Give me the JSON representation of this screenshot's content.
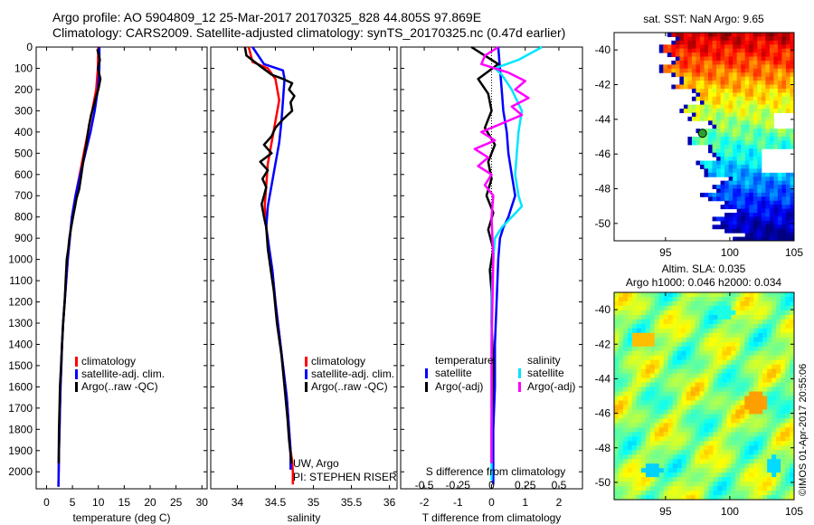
{
  "title_line1": "Argo profile: AO 5904809_12 25-Mar-2017 20170325_828 44.805S 97.869E",
  "title_line2": "Climatology: CARS2009. Satellite-adjusted climatology: synTS_20170325.nc (0.47d earlier)",
  "colors": {
    "climatology": "#ff0000",
    "satellite": "#0000ff",
    "argo": "#000000",
    "magenta": "#ff00ff",
    "cyan": "#00e5ff"
  },
  "chart_data": [
    {
      "type": "line",
      "id": "temperature",
      "xlabel": "temperature (deg C)",
      "ylabel": "",
      "xlim": [
        -2,
        31
      ],
      "ylim": [
        2080,
        0
      ],
      "xticks": [
        "0",
        "5",
        "10",
        "15",
        "20",
        "25",
        "30"
      ],
      "xtick_values": [
        0,
        5,
        10,
        15,
        20,
        25,
        30
      ],
      "yticks": [
        "0",
        "100",
        "200",
        "300",
        "400",
        "500",
        "600",
        "700",
        "800",
        "900",
        "1000",
        "1100",
        "1200",
        "1300",
        "1400",
        "1500",
        "1600",
        "1700",
        "1800",
        "1900",
        "2000"
      ],
      "ytick_values": [
        0,
        100,
        200,
        300,
        400,
        500,
        600,
        700,
        800,
        900,
        1000,
        1100,
        1200,
        1300,
        1400,
        1500,
        1600,
        1700,
        1800,
        1900,
        2000
      ],
      "legend": {
        "climatology": "climatology",
        "satellite": "satellite-adj. clim.",
        "argo": "Argo(..raw -QC)"
      },
      "series": [
        {
          "name": "climatology",
          "color_key": "climatology",
          "x": [
            10.0,
            9.9,
            9.6,
            8.8,
            8.0,
            7.2,
            6.4,
            5.6,
            4.9,
            4.5,
            4.1,
            3.8,
            3.5,
            3.2,
            3.0,
            2.85,
            2.7,
            2.6,
            2.5,
            2.4,
            2.35,
            2.3
          ],
          "y": [
            0,
            100,
            200,
            300,
            400,
            500,
            600,
            700,
            800,
            900,
            1000,
            1100,
            1200,
            1300,
            1400,
            1500,
            1600,
            1700,
            1800,
            1900,
            2000,
            2070
          ]
        },
        {
          "name": "satellite-adj. clim.",
          "color_key": "satellite",
          "x": [
            10.2,
            10.2,
            9.9,
            9.3,
            8.5,
            7.5,
            6.5,
            5.6,
            4.9,
            4.5,
            4.1,
            3.8,
            3.5,
            3.2,
            3.0,
            2.85,
            2.7,
            2.6,
            2.5,
            2.4,
            2.35,
            2.3
          ],
          "y": [
            0,
            100,
            200,
            300,
            400,
            500,
            600,
            700,
            800,
            900,
            1000,
            1100,
            1200,
            1300,
            1400,
            1500,
            1600,
            1700,
            1800,
            1900,
            2000,
            2070
          ]
        },
        {
          "name": "Argo(..raw -QC)",
          "color_key": "argo",
          "x": [
            9.8,
            10.3,
            9.9,
            10.4,
            10.0,
            9.6,
            9.2,
            8.6,
            8.2,
            7.9,
            7.6,
            7.2,
            6.9,
            6.6,
            6.3,
            5.8,
            5.5,
            5.2,
            4.9,
            4.6,
            4.4,
            4.2,
            3.9,
            3.7,
            3.5,
            3.2,
            3.0,
            2.8,
            2.6,
            2.5,
            2.4,
            2.35
          ],
          "y": [
            10,
            60,
            100,
            150,
            200,
            230,
            270,
            320,
            370,
            420,
            470,
            520,
            570,
            620,
            670,
            710,
            750,
            790,
            830,
            870,
            900,
            950,
            1000,
            1100,
            1200,
            1300,
            1400,
            1500,
            1600,
            1700,
            1800,
            1960
          ]
        }
      ]
    },
    {
      "type": "line",
      "id": "salinity",
      "xlabel": "salinity",
      "xlim": [
        33.65,
        36.1
      ],
      "ylim": [
        2080,
        0
      ],
      "xticks": [
        "34",
        "34.5",
        "35",
        "35.5",
        "36"
      ],
      "xtick_values": [
        34,
        34.5,
        35,
        35.5,
        36
      ],
      "legend": {
        "climatology": "climatology",
        "satellite": "satellite-adj. clim.",
        "argo": "Argo(..raw -QC)"
      },
      "annotation_line1": "UW, Argo",
      "annotation_line2": "PI: STEPHEN RISER",
      "series": [
        {
          "name": "climatology",
          "color_key": "climatology",
          "x": [
            34.15,
            34.2,
            34.4,
            34.5,
            34.55,
            34.5,
            34.45,
            34.4,
            34.38,
            34.36,
            34.38,
            34.42,
            34.46,
            34.5,
            34.55,
            34.6,
            34.65,
            34.68,
            34.7,
            34.72,
            34.73,
            34.73
          ],
          "y": [
            0,
            70,
            100,
            150,
            250,
            350,
            450,
            550,
            650,
            750,
            850,
            950,
            1050,
            1200,
            1350,
            1500,
            1650,
            1800,
            1900,
            1950,
            2000,
            2060
          ]
        },
        {
          "name": "satellite-adj. clim.",
          "color_key": "satellite",
          "x": [
            34.2,
            34.35,
            34.6,
            34.62,
            34.6,
            34.58,
            34.55,
            34.5,
            34.45,
            34.4,
            34.38,
            34.42,
            34.46,
            34.5,
            34.55,
            34.6,
            34.65,
            34.68,
            34.7,
            34.7,
            34.7
          ],
          "y": [
            0,
            80,
            110,
            150,
            250,
            350,
            450,
            550,
            650,
            750,
            850,
            950,
            1050,
            1200,
            1350,
            1500,
            1650,
            1800,
            1900,
            1950,
            1990
          ]
        },
        {
          "name": "Argo(..raw -QC)",
          "color_key": "argo",
          "x": [
            34.1,
            34.12,
            34.3,
            34.45,
            34.6,
            34.72,
            34.68,
            34.75,
            34.7,
            34.72,
            34.6,
            34.5,
            34.45,
            34.35,
            34.45,
            34.3,
            34.4,
            34.33,
            34.38,
            34.35,
            34.32,
            34.35,
            34.38,
            34.4,
            34.44,
            34.48,
            34.52,
            34.58,
            34.62,
            34.66,
            34.68,
            34.7,
            34.71
          ],
          "y": [
            0,
            40,
            90,
            130,
            150,
            170,
            200,
            230,
            260,
            300,
            340,
            380,
            420,
            460,
            500,
            540,
            580,
            620,
            660,
            700,
            740,
            800,
            850,
            950,
            1050,
            1150,
            1300,
            1450,
            1600,
            1750,
            1850,
            1920,
            1960
          ]
        }
      ]
    },
    {
      "type": "line",
      "id": "difference",
      "xlabel": "T difference from climatology",
      "xlabel_top": "S difference from climatology",
      "xlim": [
        -2.7,
        2.7
      ],
      "ylim": [
        2080,
        0
      ],
      "xticks": [
        "-2",
        "-1",
        "0",
        "1",
        "2"
      ],
      "xtick_values": [
        -2,
        -1,
        0,
        1,
        2
      ],
      "sticks": [
        "-0.5",
        "-0.25",
        "0",
        "0.25",
        "0.5"
      ],
      "stick_values": [
        -2,
        -1,
        0,
        1,
        2
      ],
      "legend": {
        "temperature": "temperature",
        "salinity": "salinity",
        "t_sat": "satellite",
        "t_argo": "Argo(-adj)",
        "s_sat": "satellite",
        "s_argo": "Argo(-adj)"
      },
      "series": [
        {
          "name": "temperature satellite",
          "color_key": "satellite",
          "x": [
            0.2,
            0.25,
            0.3,
            0.35,
            0.45,
            0.5,
            0.6,
            0.7,
            0.6,
            0.5,
            0.35,
            0.25,
            0.2,
            0.15,
            0.1,
            0.1,
            0.05,
            0.05,
            0.05,
            0.05
          ],
          "y": [
            0,
            100,
            200,
            300,
            400,
            500,
            600,
            700,
            750,
            800,
            850,
            900,
            1000,
            1200,
            1400,
            1600,
            1800,
            1900,
            2000,
            2060
          ]
        },
        {
          "name": "temperature Argo(-adj)",
          "color_key": "argo",
          "x": [
            -0.6,
            -0.2,
            0.2,
            -0.4,
            -0.1,
            0.0,
            -0.2,
            0.1,
            -0.1,
            0.0,
            -0.15,
            0.05,
            -0.1,
            0.05,
            -0.05,
            0.0,
            0.0,
            0.05,
            0.0,
            0.0
          ],
          "y": [
            0,
            40,
            80,
            150,
            220,
            300,
            380,
            460,
            540,
            620,
            700,
            780,
            860,
            950,
            1050,
            1150,
            1300,
            1500,
            1800,
            1960
          ]
        },
        {
          "name": "salinity satellite",
          "color_key": "cyan",
          "x": [
            1.5,
            0.8,
            0.1,
            0.3,
            0.6,
            0.9,
            0.8,
            0.75,
            0.7,
            0.8,
            0.9,
            0.6,
            0.3,
            0.1,
            0.05,
            0.0,
            0.0,
            0.0,
            0.0,
            0.0
          ],
          "y": [
            0,
            60,
            100,
            130,
            200,
            300,
            400,
            500,
            600,
            700,
            750,
            800,
            850,
            900,
            1000,
            1200,
            1400,
            1600,
            1800,
            2040
          ]
        },
        {
          "name": "salinity Argo(-adj)",
          "color_key": "magenta",
          "x": [
            0.2,
            -0.2,
            -0.3,
            0.5,
            1.0,
            0.7,
            1.1,
            0.6,
            0.9,
            0.3,
            -0.3,
            0.1,
            -0.5,
            -0.1,
            -0.4,
            0.0,
            -0.2,
            0.05,
            0.0,
            0.05,
            0.0,
            0.0
          ],
          "y": [
            0,
            40,
            80,
            120,
            160,
            200,
            240,
            280,
            320,
            360,
            400,
            440,
            480,
            520,
            560,
            600,
            650,
            700,
            800,
            1000,
            1400,
            1960
          ]
        }
      ]
    },
    {
      "type": "heatmap",
      "id": "sst_map",
      "title": "sat. SST: NaN Argo: 9.65",
      "xlim": [
        91,
        105
      ],
      "ylim": [
        -51,
        -39
      ],
      "xticks": [
        "95",
        "100",
        "105"
      ],
      "xtick_values": [
        95,
        100,
        105
      ],
      "yticks": [
        "-40",
        "-42",
        "-44",
        "-46",
        "-48",
        "-50"
      ],
      "ytick_values": [
        -40,
        -42,
        -44,
        -46,
        -48,
        -50
      ],
      "float_position": {
        "lon": 97.869,
        "lat": -44.805
      }
    },
    {
      "type": "heatmap",
      "id": "sla_map",
      "title_line1": "Altim. SLA: 0.035",
      "title_line2": "Argo h1000: 0.046 h2000: 0.034",
      "xlim": [
        91,
        105
      ],
      "ylim": [
        -51,
        -39
      ],
      "xticks": [
        "95",
        "100",
        "105"
      ],
      "xtick_values": [
        95,
        100,
        105
      ],
      "yticks": [
        "-40",
        "-42",
        "-44",
        "-46",
        "-48",
        "-50"
      ],
      "ytick_values": [
        -40,
        -42,
        -44,
        -46,
        -48,
        -50
      ]
    }
  ],
  "watermark": "©IMOS 01-Apr-2017 20:55:06"
}
